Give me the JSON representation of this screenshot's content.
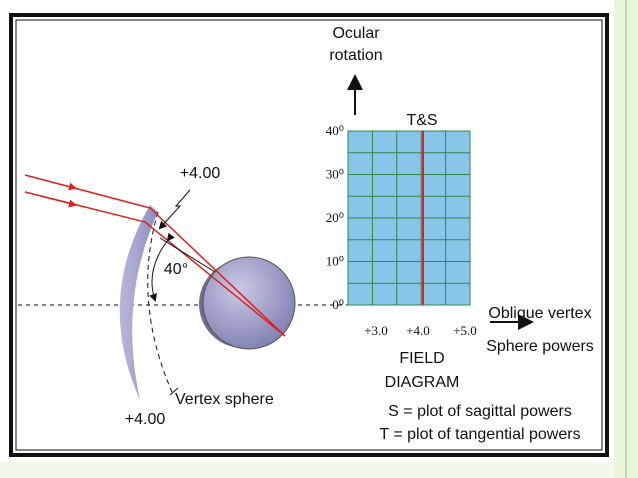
{
  "left_diagram": {
    "lens_power_top": "+4.00",
    "angle": "40°",
    "lens_power_bottom": "+4.00",
    "vertex_sphere": "Vertex sphere"
  },
  "field_diagram": {
    "y_axis_label": [
      "Ocular",
      "rotation"
    ],
    "series_label": "T&S",
    "y_tick_labels": [
      "40⁰",
      "30⁰",
      "20⁰",
      "10⁰",
      "0⁰"
    ],
    "x_tick_labels": [
      "+3.0",
      "+4.0",
      "+5.0"
    ],
    "x_axis_label": [
      "Oblique vertex",
      "Sphere powers"
    ],
    "title": [
      "FIELD",
      "DIAGRAM"
    ]
  },
  "legend": [
    "S = plot of sagittal powers",
    "T = plot of tangential powers"
  ]
}
